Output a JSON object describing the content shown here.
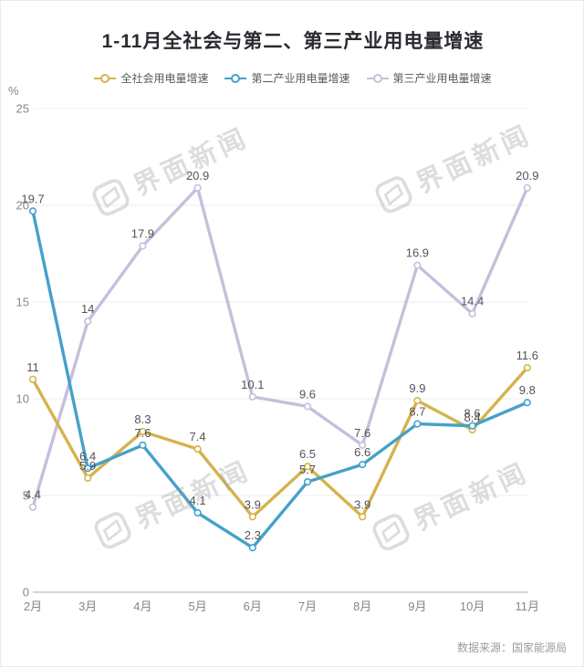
{
  "header": {
    "title": "1-11月全社会与第二、第三产业用电量增速"
  },
  "source": {
    "label": "数据来源：国家能源局"
  },
  "watermark": {
    "text": "界面新闻",
    "logo": "jiemian-news-logo",
    "color": "rgba(150,150,158,0.32)"
  },
  "chart_data": {
    "type": "line",
    "title": "1-11月全社会与第二、第三产业用电量增速",
    "unit_label": "%",
    "categories": [
      "2月",
      "3月",
      "4月",
      "5月",
      "6月",
      "7月",
      "8月",
      "9月",
      "10月",
      "11月"
    ],
    "series": [
      {
        "name": "全社会用电量增速",
        "color": "#d5b34c",
        "values": [
          11,
          5.9,
          8.3,
          7.4,
          3.9,
          6.5,
          3.9,
          9.9,
          8.4,
          11.6
        ]
      },
      {
        "name": "第二产业用电量增速",
        "color": "#45a1c9",
        "values": [
          19.7,
          6.4,
          7.6,
          4.1,
          2.3,
          5.7,
          6.6,
          8.7,
          8.6,
          9.8
        ]
      },
      {
        "name": "第三产业用电量增速",
        "color": "#c8bedb",
        "values": [
          4.4,
          14,
          17.9,
          20.9,
          10.1,
          9.6,
          7.6,
          16.9,
          14.4,
          20.9
        ]
      }
    ],
    "y_ticks": [
      0,
      5,
      10,
      15,
      20,
      25
    ],
    "ylim": [
      0,
      25
    ],
    "grid": true,
    "legend_position": "top",
    "grid_color": "#ececf1",
    "axis_line_color": "#a9aab2",
    "data_label_color": "#53535b"
  }
}
